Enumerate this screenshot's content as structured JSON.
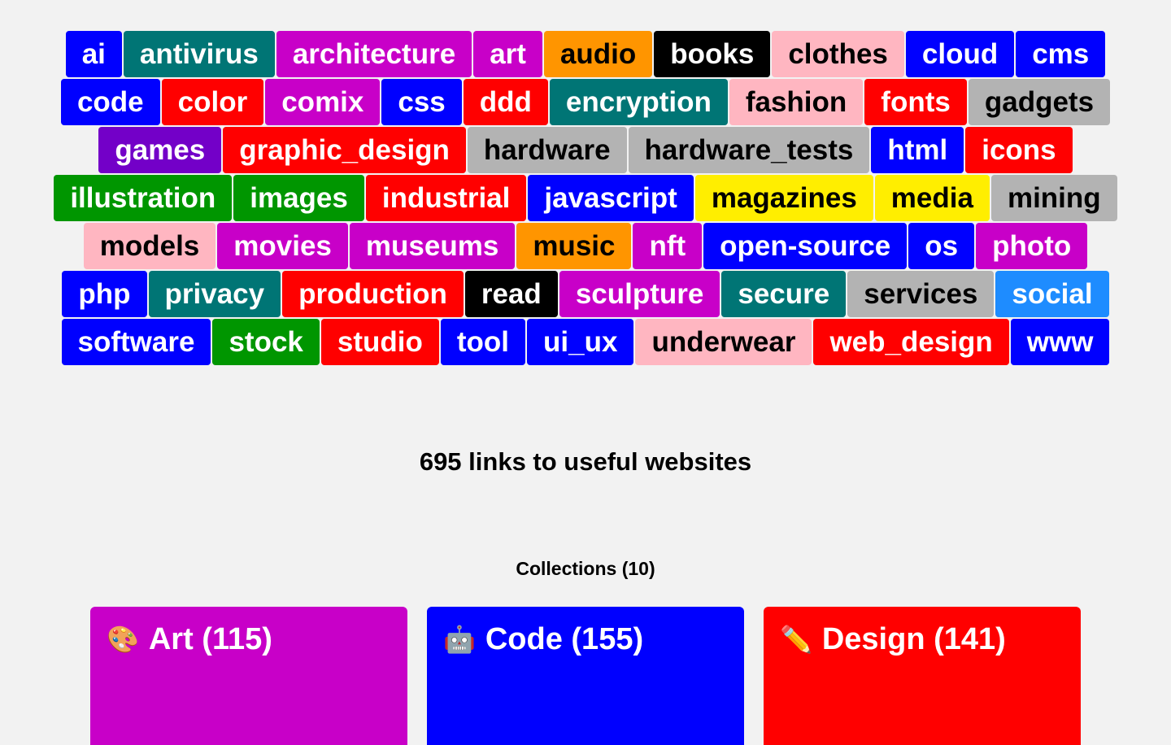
{
  "tags": [
    [
      {
        "label": "ai",
        "color": "blue"
      },
      {
        "label": "antivirus",
        "color": "teal"
      },
      {
        "label": "architecture",
        "color": "magenta"
      },
      {
        "label": "art",
        "color": "magenta"
      },
      {
        "label": "audio",
        "color": "orange"
      },
      {
        "label": "books",
        "color": "black"
      },
      {
        "label": "clothes",
        "color": "pink"
      },
      {
        "label": "cloud",
        "color": "blue"
      },
      {
        "label": "cms",
        "color": "blue"
      }
    ],
    [
      {
        "label": "code",
        "color": "blue"
      },
      {
        "label": "color",
        "color": "red"
      },
      {
        "label": "comix",
        "color": "magenta"
      },
      {
        "label": "css",
        "color": "blue"
      },
      {
        "label": "ddd",
        "color": "red"
      },
      {
        "label": "encryption",
        "color": "teal"
      },
      {
        "label": "fashion",
        "color": "pink"
      },
      {
        "label": "fonts",
        "color": "red"
      },
      {
        "label": "gadgets",
        "color": "gray"
      }
    ],
    [
      {
        "label": "games",
        "color": "purple"
      },
      {
        "label": "graphic_design",
        "color": "red"
      },
      {
        "label": "hardware",
        "color": "gray"
      },
      {
        "label": "hardware_tests",
        "color": "gray"
      },
      {
        "label": "html",
        "color": "blue"
      },
      {
        "label": "icons",
        "color": "red"
      }
    ],
    [
      {
        "label": "illustration",
        "color": "green"
      },
      {
        "label": "images",
        "color": "green"
      },
      {
        "label": "industrial",
        "color": "red"
      },
      {
        "label": "javascript",
        "color": "blue"
      },
      {
        "label": "magazines",
        "color": "yellow"
      },
      {
        "label": "media",
        "color": "yellow"
      },
      {
        "label": "mining",
        "color": "gray"
      }
    ],
    [
      {
        "label": "models",
        "color": "pink"
      },
      {
        "label": "movies",
        "color": "magenta"
      },
      {
        "label": "museums",
        "color": "magenta"
      },
      {
        "label": "music",
        "color": "orange"
      },
      {
        "label": "nft",
        "color": "magenta"
      },
      {
        "label": "open-source",
        "color": "blue"
      },
      {
        "label": "os",
        "color": "blue"
      },
      {
        "label": "photo",
        "color": "magenta"
      }
    ],
    [
      {
        "label": "php",
        "color": "blue"
      },
      {
        "label": "privacy",
        "color": "teal"
      },
      {
        "label": "production",
        "color": "red"
      },
      {
        "label": "read",
        "color": "black"
      },
      {
        "label": "sculpture",
        "color": "magenta"
      },
      {
        "label": "secure",
        "color": "teal"
      },
      {
        "label": "services",
        "color": "gray"
      },
      {
        "label": "social",
        "color": "sky"
      }
    ],
    [
      {
        "label": "software",
        "color": "blue"
      },
      {
        "label": "stock",
        "color": "green"
      },
      {
        "label": "studio",
        "color": "red"
      },
      {
        "label": "tool",
        "color": "blue"
      },
      {
        "label": "ui_ux",
        "color": "blue"
      },
      {
        "label": "underwear",
        "color": "pink"
      },
      {
        "label": "web_design",
        "color": "red"
      },
      {
        "label": "www",
        "color": "blue"
      }
    ]
  ],
  "dark_text_colors": [
    "orange",
    "pink",
    "gray",
    "yellow"
  ],
  "headline": "695 links to useful websites",
  "collections_title": "Collections (10)",
  "collections": [
    {
      "emoji": "🎨",
      "icon": "palette-icon",
      "label": "Art (115)",
      "color": "#c800c8"
    },
    {
      "emoji": "🤖",
      "icon": "robot-icon",
      "label": "Code (155)",
      "color": "#0000ff"
    },
    {
      "emoji": "✏️",
      "icon": "pencil-icon",
      "label": "Design (141)",
      "color": "#ff0000"
    }
  ]
}
